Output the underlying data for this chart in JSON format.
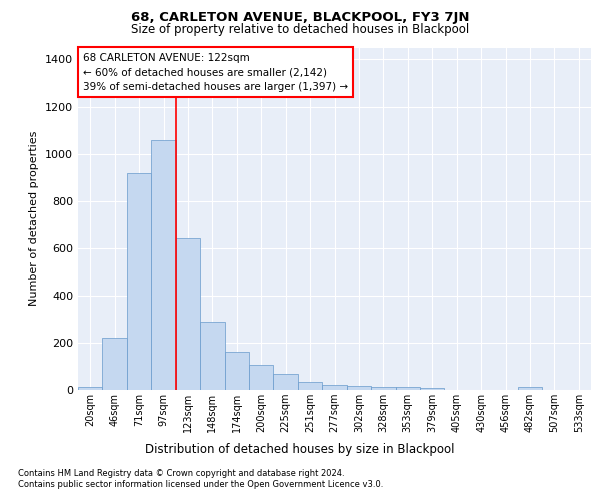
{
  "title": "68, CARLETON AVENUE, BLACKPOOL, FY3 7JN",
  "subtitle": "Size of property relative to detached houses in Blackpool",
  "xlabel": "Distribution of detached houses by size in Blackpool",
  "ylabel": "Number of detached properties",
  "categories": [
    "20sqm",
    "46sqm",
    "71sqm",
    "97sqm",
    "123sqm",
    "148sqm",
    "174sqm",
    "200sqm",
    "225sqm",
    "251sqm",
    "277sqm",
    "302sqm",
    "328sqm",
    "353sqm",
    "379sqm",
    "405sqm",
    "430sqm",
    "456sqm",
    "482sqm",
    "507sqm",
    "533sqm"
  ],
  "values": [
    12,
    220,
    920,
    1060,
    645,
    290,
    160,
    105,
    68,
    33,
    20,
    15,
    13,
    12,
    10,
    0,
    0,
    0,
    14,
    0,
    0
  ],
  "bar_color": "#c5d8f0",
  "bar_edge_color": "#6699cc",
  "property_sqm": 122,
  "annotation_label": "68 CARLETON AVENUE: 122sqm",
  "annotation_line1": "← 60% of detached houses are smaller (2,142)",
  "annotation_line2": "39% of semi-detached houses are larger (1,397) →",
  "ylim": [
    0,
    1450
  ],
  "yticks": [
    0,
    200,
    400,
    600,
    800,
    1000,
    1200,
    1400
  ],
  "footnote1": "Contains HM Land Registry data © Crown copyright and database right 2024.",
  "footnote2": "Contains public sector information licensed under the Open Government Licence v3.0.",
  "plot_bg_color": "#e8eef8"
}
